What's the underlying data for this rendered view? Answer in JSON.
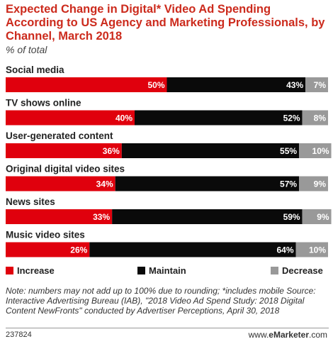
{
  "title": "Expected Change in Digital* Video Ad Spending According to US Agency and Marketing Professionals, by Channel, March 2018",
  "subtitle": "% of total",
  "chart_data": {
    "type": "bar",
    "orientation": "horizontal",
    "stacked": true,
    "categories": [
      "Social media",
      "TV shows online",
      "User-generated content",
      "Original digital video sites",
      "News sites",
      "Music video sites"
    ],
    "series": [
      {
        "name": "Increase",
        "values": [
          50,
          40,
          36,
          34,
          33,
          26
        ],
        "color": "#e0000d"
      },
      {
        "name": "Maintain",
        "values": [
          43,
          52,
          55,
          57,
          59,
          64
        ],
        "color": "#0a0a0a"
      },
      {
        "name": "Decrease",
        "values": [
          7,
          8,
          10,
          9,
          9,
          10
        ],
        "color": "#999999"
      }
    ],
    "value_suffix": "%",
    "xlim": [
      0,
      100
    ],
    "grid": false,
    "legend": "bottom"
  },
  "legend": {
    "increase": "Increase",
    "maintain": "Maintain",
    "decrease": "Decrease"
  },
  "note": "Note: numbers may not add up to 100% due to rounding; *includes mobile Source: Interactive Advertising Bureau (IAB), \"2018 Video Ad Spend Study: 2018 Digital Content NewFronts\" conducted by Advertiser Perceptions, April 30, 2018",
  "footer": {
    "id": "237824",
    "brand_prefix": "www.",
    "brand_name": "eMarketer",
    "brand_suffix": ".com"
  }
}
